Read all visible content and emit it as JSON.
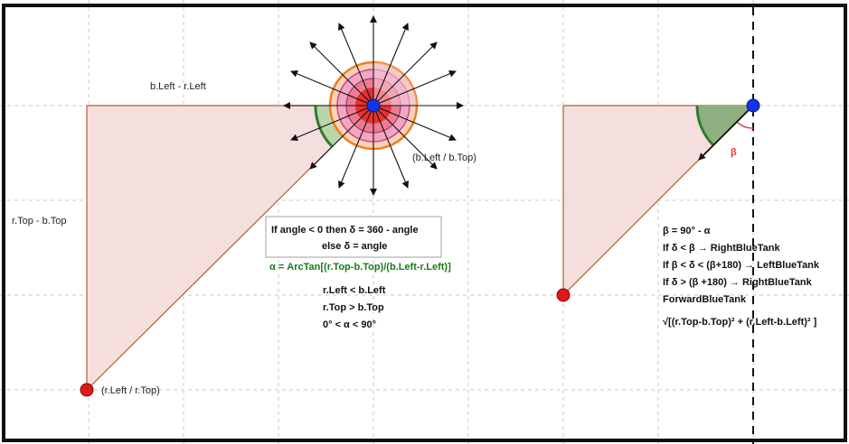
{
  "labels": {
    "horizontal_diff": "b.Left - r.Left",
    "vertical_diff": "r.Top - b.Top",
    "blue_point": "(b.Left / b.Top)",
    "red_point": "(r.Left / r.Top)"
  },
  "left_box": {
    "line1": "If angle < 0 then δ = 360 - angle",
    "line2": "else δ = angle"
  },
  "formula_alpha": "α = ArcTan[(r.Top-b.Top)/(b.Left-r.Left)]",
  "conditions": [
    "r.Left < b.Left",
    "r.Top > b.Top",
    "0° < α < 90°"
  ],
  "beta_label": "β",
  "right_rules": [
    "β = 90° - α",
    "If δ < β →  RightBlueTank",
    "If β < δ < (β+180) →  LeftBlueTank",
    "If δ > (β +180) →  RightBlueTank",
    "ForwardBlueTank"
  ],
  "distance_formula": "√[(r.Top-b.Top)² + (r.Left-b.Left)² ]",
  "colors": {
    "blue_point": "#1133ee",
    "red_point": "#e01818",
    "triangle_fill": "#f5dede",
    "triangle_stroke": "#b0622a",
    "angle_arc": "#2e7d2e",
    "formula_green": "#1a7a1a"
  }
}
